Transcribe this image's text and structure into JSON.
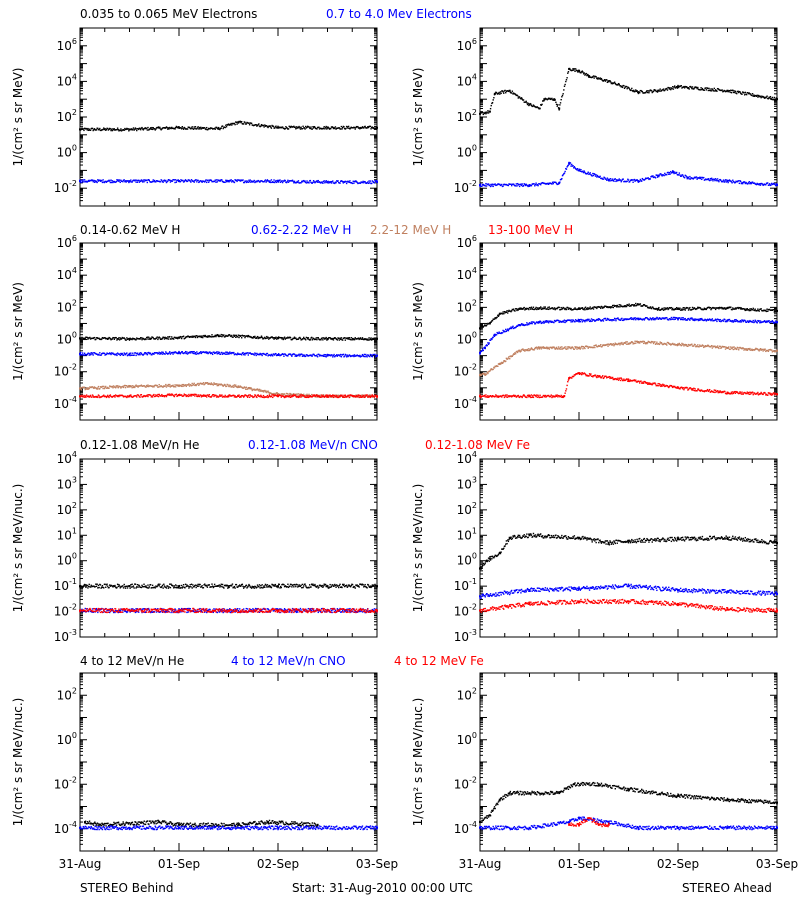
{
  "chart_data": [
    {
      "type": "scatter",
      "position": "row-1-left",
      "yscale": "log",
      "ylim": [
        0.001,
        10000000
      ],
      "ylabel": "1/(cm² s sr MeV)",
      "yticks": [
        {
          "value": 1000000,
          "base": "10",
          "exp": "6"
        },
        {
          "value": 10000,
          "base": "10",
          "exp": "4"
        },
        {
          "value": 100,
          "base": "10",
          "exp": "2"
        },
        {
          "value": 1,
          "base": "10",
          "exp": "0"
        },
        {
          "value": 0.01,
          "base": "10",
          "exp": "-2"
        }
      ],
      "series": [
        {
          "name": "0.035 to 0.065 MeV Electrons",
          "color": "#000000",
          "x": [
            0,
            0.5,
            1.0,
            1.4,
            1.6,
            2.0,
            2.5,
            3.0
          ],
          "y": [
            20,
            20,
            25,
            22,
            50,
            25,
            25,
            25
          ]
        },
        {
          "name": "0.7 to 4.0 Mev Electrons",
          "color": "#0000ff",
          "x": [
            0,
            0.5,
            1.0,
            1.5,
            2.0,
            2.5,
            3.0
          ],
          "y": [
            0.025,
            0.025,
            0.025,
            0.025,
            0.025,
            0.022,
            0.022
          ]
        }
      ]
    },
    {
      "type": "scatter",
      "position": "row-1-right",
      "yscale": "log",
      "ylim": [
        0.001,
        10000000
      ],
      "ylabel": "1/(cm² s sr MeV)",
      "yticks": [
        {
          "value": 1000000,
          "base": "10",
          "exp": "6"
        },
        {
          "value": 10000,
          "base": "10",
          "exp": "4"
        },
        {
          "value": 100,
          "base": "10",
          "exp": "2"
        },
        {
          "value": 1,
          "base": "10",
          "exp": "0"
        },
        {
          "value": 0.01,
          "base": "10",
          "exp": "-2"
        }
      ],
      "series": [
        {
          "name": "0.035 to 0.065 MeV Electrons",
          "color": "#000000",
          "x": [
            0,
            0.1,
            0.15,
            0.3,
            0.5,
            0.6,
            0.65,
            0.75,
            0.8,
            0.9,
            1.0,
            1.1,
            1.3,
            1.6,
            1.8,
            2.0,
            2.5,
            3.0
          ],
          "y": [
            150,
            200,
            2000,
            3000,
            500,
            300,
            1000,
            1000,
            300,
            50000,
            40000,
            20000,
            10000,
            2500,
            3000,
            5000,
            3000,
            1000
          ]
        },
        {
          "name": "0.7 to 4.0 Mev Electrons",
          "color": "#0000ff",
          "x": [
            0,
            0.5,
            0.8,
            0.9,
            1.0,
            1.3,
            1.6,
            1.8,
            1.95,
            2.1,
            2.5,
            3.0
          ],
          "y": [
            0.015,
            0.015,
            0.02,
            0.25,
            0.1,
            0.03,
            0.025,
            0.05,
            0.08,
            0.04,
            0.025,
            0.015
          ]
        }
      ]
    },
    {
      "type": "scatter",
      "position": "row-2-left",
      "yscale": "log",
      "ylim": [
        1e-05,
        1000000
      ],
      "ylabel": "1/(cm² s sr MeV)",
      "yticks": [
        {
          "value": 1000000,
          "base": "10",
          "exp": "6"
        },
        {
          "value": 10000,
          "base": "10",
          "exp": "4"
        },
        {
          "value": 100,
          "base": "10",
          "exp": "2"
        },
        {
          "value": 1,
          "base": "10",
          "exp": "0"
        },
        {
          "value": 0.01,
          "base": "10",
          "exp": "-2"
        },
        {
          "value": 0.0001,
          "base": "10",
          "exp": "-4"
        }
      ],
      "series": [
        {
          "name": "0.14-0.62 MeV H",
          "color": "#000000",
          "x": [
            0,
            0.5,
            1.0,
            1.4,
            2.0,
            2.5,
            3.0
          ],
          "y": [
            1.2,
            1.1,
            1.3,
            1.8,
            1.2,
            1.1,
            1.1
          ]
        },
        {
          "name": "0.62-2.22 MeV H",
          "color": "#0000ff",
          "x": [
            0,
            0.5,
            1.0,
            1.5,
            2.0,
            2.5,
            3.0
          ],
          "y": [
            0.13,
            0.12,
            0.15,
            0.14,
            0.11,
            0.1,
            0.1
          ]
        },
        {
          "name": "2.2-12 MeV H",
          "color": "#c08060",
          "x": [
            0,
            0.5,
            1.0,
            1.3,
            1.6,
            2.0,
            2.5,
            3.0
          ],
          "y": [
            0.0009,
            0.0012,
            0.0014,
            0.0018,
            0.0012,
            0.0004,
            0.0003,
            0.0003
          ]
        },
        {
          "name": "13-100 MeV H",
          "color": "#ff0000",
          "x": [
            0,
            0.5,
            1.0,
            1.5,
            2.0,
            2.5,
            3.0
          ],
          "y": [
            0.0003,
            0.0003,
            0.00035,
            0.0003,
            0.0003,
            0.0003,
            0.0003
          ]
        }
      ]
    },
    {
      "type": "scatter",
      "position": "row-2-right",
      "yscale": "log",
      "ylim": [
        1e-05,
        1000000
      ],
      "ylabel": "1/(cm² s sr MeV)",
      "yticks": [
        {
          "value": 1000000,
          "base": "10",
          "exp": "6"
        },
        {
          "value": 10000,
          "base": "10",
          "exp": "4"
        },
        {
          "value": 100,
          "base": "10",
          "exp": "2"
        },
        {
          "value": 1,
          "base": "10",
          "exp": "0"
        },
        {
          "value": 0.01,
          "base": "10",
          "exp": "-2"
        },
        {
          "value": 0.0001,
          "base": "10",
          "exp": "-4"
        }
      ],
      "series": [
        {
          "name": "0.14-0.62 MeV H",
          "color": "#000000",
          "x": [
            0,
            0.1,
            0.2,
            0.4,
            0.6,
            1.0,
            1.6,
            1.8,
            2.0,
            2.5,
            3.0
          ],
          "y": [
            5,
            10,
            40,
            80,
            90,
            80,
            150,
            80,
            80,
            90,
            60
          ]
        },
        {
          "name": "0.62-2.22 MeV H",
          "color": "#0000ff",
          "x": [
            0,
            0.05,
            0.15,
            0.4,
            0.6,
            1.0,
            1.6,
            2.0,
            2.5,
            3.0
          ],
          "y": [
            0.15,
            0.3,
            2,
            8,
            12,
            15,
            20,
            20,
            15,
            12
          ]
        },
        {
          "name": "2.2-12 MeV H",
          "color": "#c08060",
          "x": [
            0,
            0.05,
            0.2,
            0.4,
            0.6,
            1.0,
            1.6,
            2.0,
            2.5,
            3.0
          ],
          "y": [
            0.006,
            0.007,
            0.03,
            0.2,
            0.3,
            0.3,
            0.7,
            0.5,
            0.3,
            0.2
          ]
        },
        {
          "name": "13-100 MeV H",
          "color": "#ff0000",
          "x": [
            0,
            0.5,
            0.85,
            0.9,
            1.0,
            1.2,
            1.5,
            2.0,
            2.5,
            3.0
          ],
          "y": [
            0.0003,
            0.0003,
            0.0003,
            0.004,
            0.008,
            0.005,
            0.003,
            0.001,
            0.0005,
            0.0004
          ]
        }
      ]
    },
    {
      "type": "scatter",
      "position": "row-3-left",
      "yscale": "log",
      "ylim": [
        0.001,
        10000
      ],
      "ylabel": "1/(cm² s sr MeV/nuc.)",
      "yticks": [
        {
          "value": 10000,
          "base": "10",
          "exp": "4"
        },
        {
          "value": 1000,
          "base": "10",
          "exp": "3"
        },
        {
          "value": 100,
          "base": "10",
          "exp": "2"
        },
        {
          "value": 10,
          "base": "10",
          "exp": "1"
        },
        {
          "value": 1,
          "base": "10",
          "exp": "0"
        },
        {
          "value": 0.1,
          "base": "10",
          "exp": "-1"
        },
        {
          "value": 0.01,
          "base": "10",
          "exp": "-2"
        },
        {
          "value": 0.001,
          "base": "10",
          "exp": "-3"
        }
      ],
      "series": [
        {
          "name": "0.12-1.08 MeV/n He",
          "color": "#000000",
          "x": [
            0,
            0.5,
            1.0,
            1.5,
            2.0,
            2.5,
            3.0
          ],
          "y": [
            0.1,
            0.1,
            0.1,
            0.1,
            0.1,
            0.1,
            0.1
          ]
        },
        {
          "name": "0.12-1.08 MeV/n CNO",
          "color": "#0000ff",
          "x": [
            0,
            0.5,
            1.0,
            1.5,
            2.0,
            2.5,
            3.0
          ],
          "y": [
            0.011,
            0.011,
            0.011,
            0.011,
            0.011,
            0.011,
            0.011
          ]
        },
        {
          "name": "0.12-1.08 MeV Fe",
          "color": "#ff0000",
          "x": [
            0,
            0.5,
            1.0,
            1.5,
            2.0,
            2.5,
            3.0
          ],
          "y": [
            0.011,
            0.011,
            0.011,
            0.011,
            0.011,
            0.011,
            0.011
          ]
        }
      ]
    },
    {
      "type": "scatter",
      "position": "row-3-right",
      "yscale": "log",
      "ylim": [
        0.001,
        10000
      ],
      "ylabel": "1/(cm² s sr MeV/nuc.)",
      "yticks": [
        {
          "value": 10000,
          "base": "10",
          "exp": "4"
        },
        {
          "value": 1000,
          "base": "10",
          "exp": "3"
        },
        {
          "value": 100,
          "base": "10",
          "exp": "2"
        },
        {
          "value": 10,
          "base": "10",
          "exp": "1"
        },
        {
          "value": 1,
          "base": "10",
          "exp": "0"
        },
        {
          "value": 0.1,
          "base": "10",
          "exp": "-1"
        },
        {
          "value": 0.01,
          "base": "10",
          "exp": "-2"
        },
        {
          "value": 0.001,
          "base": "10",
          "exp": "-3"
        }
      ],
      "series": [
        {
          "name": "0.12-1.08 MeV/n He",
          "color": "#000000",
          "x": [
            0,
            0.1,
            0.2,
            0.3,
            0.5,
            1.0,
            1.3,
            1.5,
            2.0,
            2.5,
            3.0
          ],
          "y": [
            0.5,
            1.2,
            2,
            8,
            10,
            8,
            5,
            6,
            7,
            8,
            5
          ]
        },
        {
          "name": "0.12-1.08 MeV/n CNO",
          "color": "#0000ff",
          "x": [
            0,
            0.5,
            1.0,
            1.5,
            2.0,
            2.5,
            3.0
          ],
          "y": [
            0.04,
            0.07,
            0.08,
            0.1,
            0.07,
            0.06,
            0.05
          ]
        },
        {
          "name": "0.12-1.08 MeV Fe",
          "color": "#ff0000",
          "x": [
            0,
            0.5,
            1.0,
            1.5,
            2.0,
            2.5,
            3.0
          ],
          "y": [
            0.011,
            0.02,
            0.025,
            0.025,
            0.02,
            0.012,
            0.011
          ]
        }
      ]
    },
    {
      "type": "scatter",
      "position": "row-4-left",
      "yscale": "log",
      "ylim": [
        1e-05,
        1000
      ],
      "ylabel": "1/(cm² s sr MeV/nuc.)",
      "yticks": [
        {
          "value": 100,
          "base": "10",
          "exp": "2"
        },
        {
          "value": 1,
          "base": "10",
          "exp": "0"
        },
        {
          "value": 0.01,
          "base": "10",
          "exp": "-2"
        },
        {
          "value": 0.0001,
          "base": "10",
          "exp": "-4"
        }
      ],
      "series": [
        {
          "name": "4 to 12 MeV/n He",
          "color": "#000000",
          "x": [
            0.05,
            0.2,
            0.8,
            1.0,
            1.6,
            1.9,
            2.4
          ],
          "y": [
            0.0002,
            0.00015,
            0.0002,
            0.00015,
            0.00015,
            0.0002,
            0.00015
          ]
        },
        {
          "name": "4 to 12 MeV/n CNO",
          "color": "#0000ff",
          "x": [
            0,
            0.5,
            1.0,
            1.5,
            2.0,
            2.5,
            3.0
          ],
          "y": [
            0.00011,
            0.00011,
            0.00011,
            0.00011,
            0.00011,
            0.00011,
            0.00011
          ]
        },
        {
          "name": "4 to 12 MeV Fe",
          "color": "#ff0000",
          "x": [],
          "y": []
        }
      ]
    },
    {
      "type": "scatter",
      "position": "row-4-right",
      "yscale": "log",
      "ylim": [
        1e-05,
        1000
      ],
      "ylabel": "1/(cm² s sr MeV/nuc.)",
      "yticks": [
        {
          "value": 100,
          "base": "10",
          "exp": "2"
        },
        {
          "value": 1,
          "base": "10",
          "exp": "0"
        },
        {
          "value": 0.01,
          "base": "10",
          "exp": "-2"
        },
        {
          "value": 0.0001,
          "base": "10",
          "exp": "-4"
        }
      ],
      "series": [
        {
          "name": "4 to 12 MeV/n He",
          "color": "#000000",
          "x": [
            0,
            0.1,
            0.2,
            0.3,
            0.5,
            0.8,
            0.95,
            1.2,
            1.5,
            2.0,
            2.5,
            3.0
          ],
          "y": [
            0.0002,
            0.0004,
            0.002,
            0.004,
            0.004,
            0.004,
            0.01,
            0.01,
            0.006,
            0.003,
            0.002,
            0.0015
          ]
        },
        {
          "name": "4 to 12 MeV/n CNO",
          "color": "#0000ff",
          "x": [
            0,
            0.5,
            0.9,
            1.0,
            1.3,
            1.6,
            2.0,
            2.5,
            3.0
          ],
          "y": [
            0.00011,
            0.00011,
            0.0002,
            0.0003,
            0.0002,
            0.00011,
            0.00011,
            0.00011,
            0.00011
          ]
        },
        {
          "name": "4 to 12 MeV Fe",
          "color": "#ff0000",
          "x": [
            0.9,
            1.0,
            1.1,
            1.2,
            1.3
          ],
          "y": [
            0.00015,
            0.00015,
            0.0003,
            0.00015,
            0.00015
          ]
        }
      ]
    }
  ],
  "legends": [
    {
      "row": 1,
      "items": [
        {
          "label": "0.035 to 0.065 MeV Electrons",
          "color": "#000000"
        },
        {
          "label": "0.7 to 4.0 Mev Electrons",
          "color": "#0000ff"
        }
      ]
    },
    {
      "row": 2,
      "items": [
        {
          "label": "0.14-0.62 MeV H",
          "color": "#000000"
        },
        {
          "label": "0.62-2.22 MeV H",
          "color": "#0000ff"
        },
        {
          "label": "2.2-12 MeV H",
          "color": "#c08060"
        },
        {
          "label": "13-100 MeV H",
          "color": "#ff0000"
        }
      ]
    },
    {
      "row": 3,
      "items": [
        {
          "label": "0.12-1.08 MeV/n He",
          "color": "#000000"
        },
        {
          "label": "0.12-1.08 MeV/n CNO",
          "color": "#0000ff"
        },
        {
          "label": "0.12-1.08 MeV Fe",
          "color": "#ff0000"
        }
      ]
    },
    {
      "row": 4,
      "items": [
        {
          "label": "4 to 12 MeV/n He",
          "color": "#000000"
        },
        {
          "label": "4 to 12 MeV/n CNO",
          "color": "#0000ff"
        },
        {
          "label": "4 to 12 MeV Fe",
          "color": "#ff0000"
        }
      ]
    }
  ],
  "x_axis": {
    "ticks": [
      {
        "value": 0,
        "label": "31-Aug"
      },
      {
        "value": 1,
        "label": "01-Sep"
      },
      {
        "value": 2,
        "label": "02-Sep"
      },
      {
        "value": 3,
        "label": "03-Sep"
      }
    ],
    "xlim": [
      0,
      3
    ]
  },
  "footer": {
    "left": "STEREO Behind",
    "center": "Start: 31-Aug-2010 00:00 UTC",
    "right": "STEREO Ahead"
  }
}
